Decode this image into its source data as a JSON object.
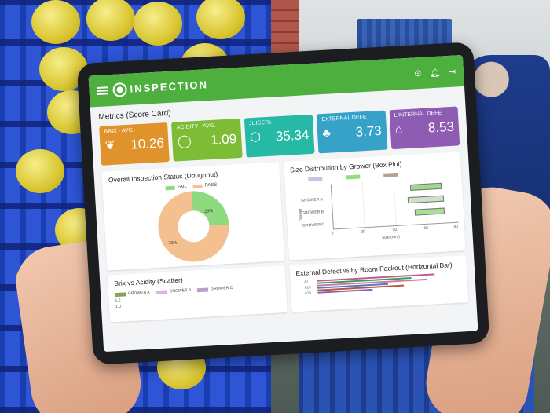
{
  "app": {
    "brand_top": "",
    "brand_name": "INSPECTION",
    "brand_sub": "",
    "colors": {
      "header": "#4caf3e",
      "background": "#f3f4f6"
    },
    "icons": [
      "menu-icon",
      "gear-icon",
      "bell-icon",
      "logout-icon"
    ]
  },
  "scorecard": {
    "title": "Metrics (Score Card)",
    "cards": [
      {
        "label": "BRIX - AVG.",
        "value": "10.26",
        "icon": "sprout-icon",
        "color": "#e0922b"
      },
      {
        "label": "ACIDITY - AVG.",
        "value": "1.09",
        "icon": "apple-icon",
        "color": "#7cbd35"
      },
      {
        "label": "JUICE %",
        "value": "35.34",
        "icon": "box-icon",
        "color": "#26b9a5"
      },
      {
        "label": "EXTERNAL DEFE",
        "value": "3.73",
        "icon": "tree-icon",
        "color": "#37a2c8"
      },
      {
        "label": "L INTERNAL DEFE",
        "value": "8.53",
        "icon": "warehouse-icon",
        "color": "#8e5cb3"
      }
    ]
  },
  "doughnut": {
    "title": "Overall Inspection Status (Doughnut)",
    "legend": [
      "FAIL",
      "PASS"
    ],
    "fail_pct": 25,
    "pass_pct": 75,
    "label_fail": "25%",
    "label_pass": "75%",
    "colors": {
      "fail": "#8fd97e",
      "pass": "#f4c08f"
    }
  },
  "boxplot": {
    "title": "Size Distribution by Grower (Box Plot)",
    "y_axis_label": "Grower",
    "growers": [
      "GROWER A",
      "GROWER B",
      "GROWER C"
    ],
    "x_ticks": [
      "0",
      "20",
      "40",
      "60",
      "80"
    ],
    "x_axis_label": "Size (mm)"
  },
  "scatter": {
    "title": "Brix vs Acidity (Scatter)",
    "legend": [
      "GROWER A",
      "GROWER B",
      "GROWER C"
    ],
    "y_ticks": [
      "1.2",
      "1.0"
    ]
  },
  "hbar": {
    "title": "External Defect % by Room Packout (Horizontal Bar)",
    "rows": [
      "A1",
      "A13",
      "A15"
    ]
  }
}
